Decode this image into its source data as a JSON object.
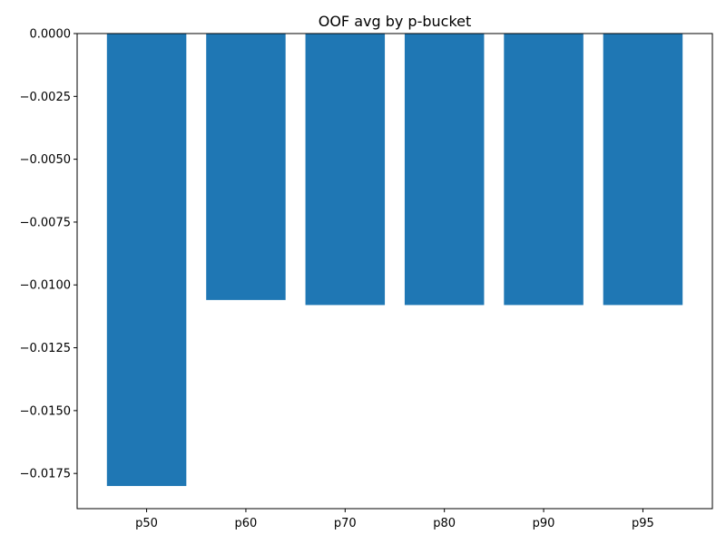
{
  "chart_data": {
    "type": "bar",
    "title": "OOF avg by p-bucket",
    "xlabel": "",
    "ylabel": "",
    "categories": [
      "p50",
      "p60",
      "p70",
      "p80",
      "p90",
      "p95"
    ],
    "values": [
      -0.018,
      -0.0106,
      -0.0108,
      -0.0108,
      -0.0108,
      -0.0108
    ],
    "ylim": [
      -0.0189,
      0.0
    ],
    "yticks": [
      0.0,
      -0.0025,
      -0.005,
      -0.0075,
      -0.01,
      -0.0125,
      -0.015,
      -0.0175
    ],
    "ytick_labels": [
      "0.0000",
      "−0.0025",
      "−0.0050",
      "−0.0075",
      "−0.0100",
      "−0.0125",
      "−0.0150",
      "−0.0175"
    ],
    "grid": false,
    "bar_color": "#1f77b4"
  }
}
